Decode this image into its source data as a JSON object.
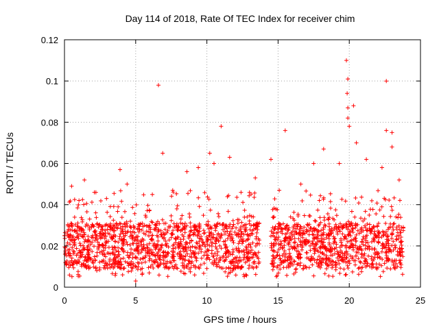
{
  "chart_data": {
    "type": "scatter",
    "title": "Day 114 of 2018, Rate Of TEC Index for receiver chim",
    "xlabel": "GPS time / hours",
    "ylabel": "ROTI / TECUs",
    "xlim": [
      0,
      25
    ],
    "ylim": [
      0,
      0.12
    ],
    "xticks": [
      0,
      5,
      10,
      15,
      20,
      25
    ],
    "xtick_labels": [
      "0",
      "5",
      "10",
      "15",
      "20",
      "25"
    ],
    "yticks": [
      0,
      0.02,
      0.04,
      0.06,
      0.08,
      0.1,
      0.12
    ],
    "ytick_labels": [
      "0",
      "0.02",
      "0.04",
      "0.06",
      "0.08",
      "0.1",
      "0.12"
    ],
    "grid": true,
    "marker": "+",
    "series": [
      {
        "name": "ROTI",
        "color": "#ff0000",
        "segments": [
          {
            "x_range": [
              0.0,
              13.7
            ],
            "y_band_typical": [
              0.005,
              0.035
            ],
            "notable_points": [
              [
                0.5,
                0.049
              ],
              [
                1.4,
                0.052
              ],
              [
                2.1,
                0.046
              ],
              [
                3.9,
                0.057
              ],
              [
                4.4,
                0.05
              ],
              [
                5.0,
                0.003
              ],
              [
                6.6,
                0.098
              ],
              [
                6.9,
                0.065
              ],
              [
                7.6,
                0.047
              ],
              [
                8.6,
                0.056
              ],
              [
                9.4,
                0.058
              ],
              [
                10.2,
                0.065
              ],
              [
                10.5,
                0.06
              ],
              [
                11.0,
                0.078
              ],
              [
                11.6,
                0.063
              ],
              [
                12.4,
                0.046
              ],
              [
                13.4,
                0.053
              ]
            ]
          },
          {
            "x_range": [
              14.5,
              23.8
            ],
            "y_band_typical": [
              0.005,
              0.035
            ],
            "notable_points": [
              [
                14.5,
                0.062
              ],
              [
                15.5,
                0.076
              ],
              [
                16.6,
                0.05
              ],
              [
                17.5,
                0.06
              ],
              [
                18.2,
                0.067
              ],
              [
                19.3,
                0.06
              ],
              [
                19.8,
                0.11
              ],
              [
                19.9,
                0.101
              ],
              [
                19.85,
                0.094
              ],
              [
                19.9,
                0.087
              ],
              [
                19.9,
                0.082
              ],
              [
                20.0,
                0.078
              ],
              [
                20.3,
                0.088
              ],
              [
                20.5,
                0.07
              ],
              [
                21.2,
                0.062
              ],
              [
                22.3,
                0.058
              ],
              [
                22.6,
                0.1
              ],
              [
                22.6,
                0.076
              ],
              [
                23.0,
                0.075
              ],
              [
                23.0,
                0.068
              ],
              [
                23.5,
                0.052
              ]
            ]
          }
        ]
      }
    ]
  }
}
